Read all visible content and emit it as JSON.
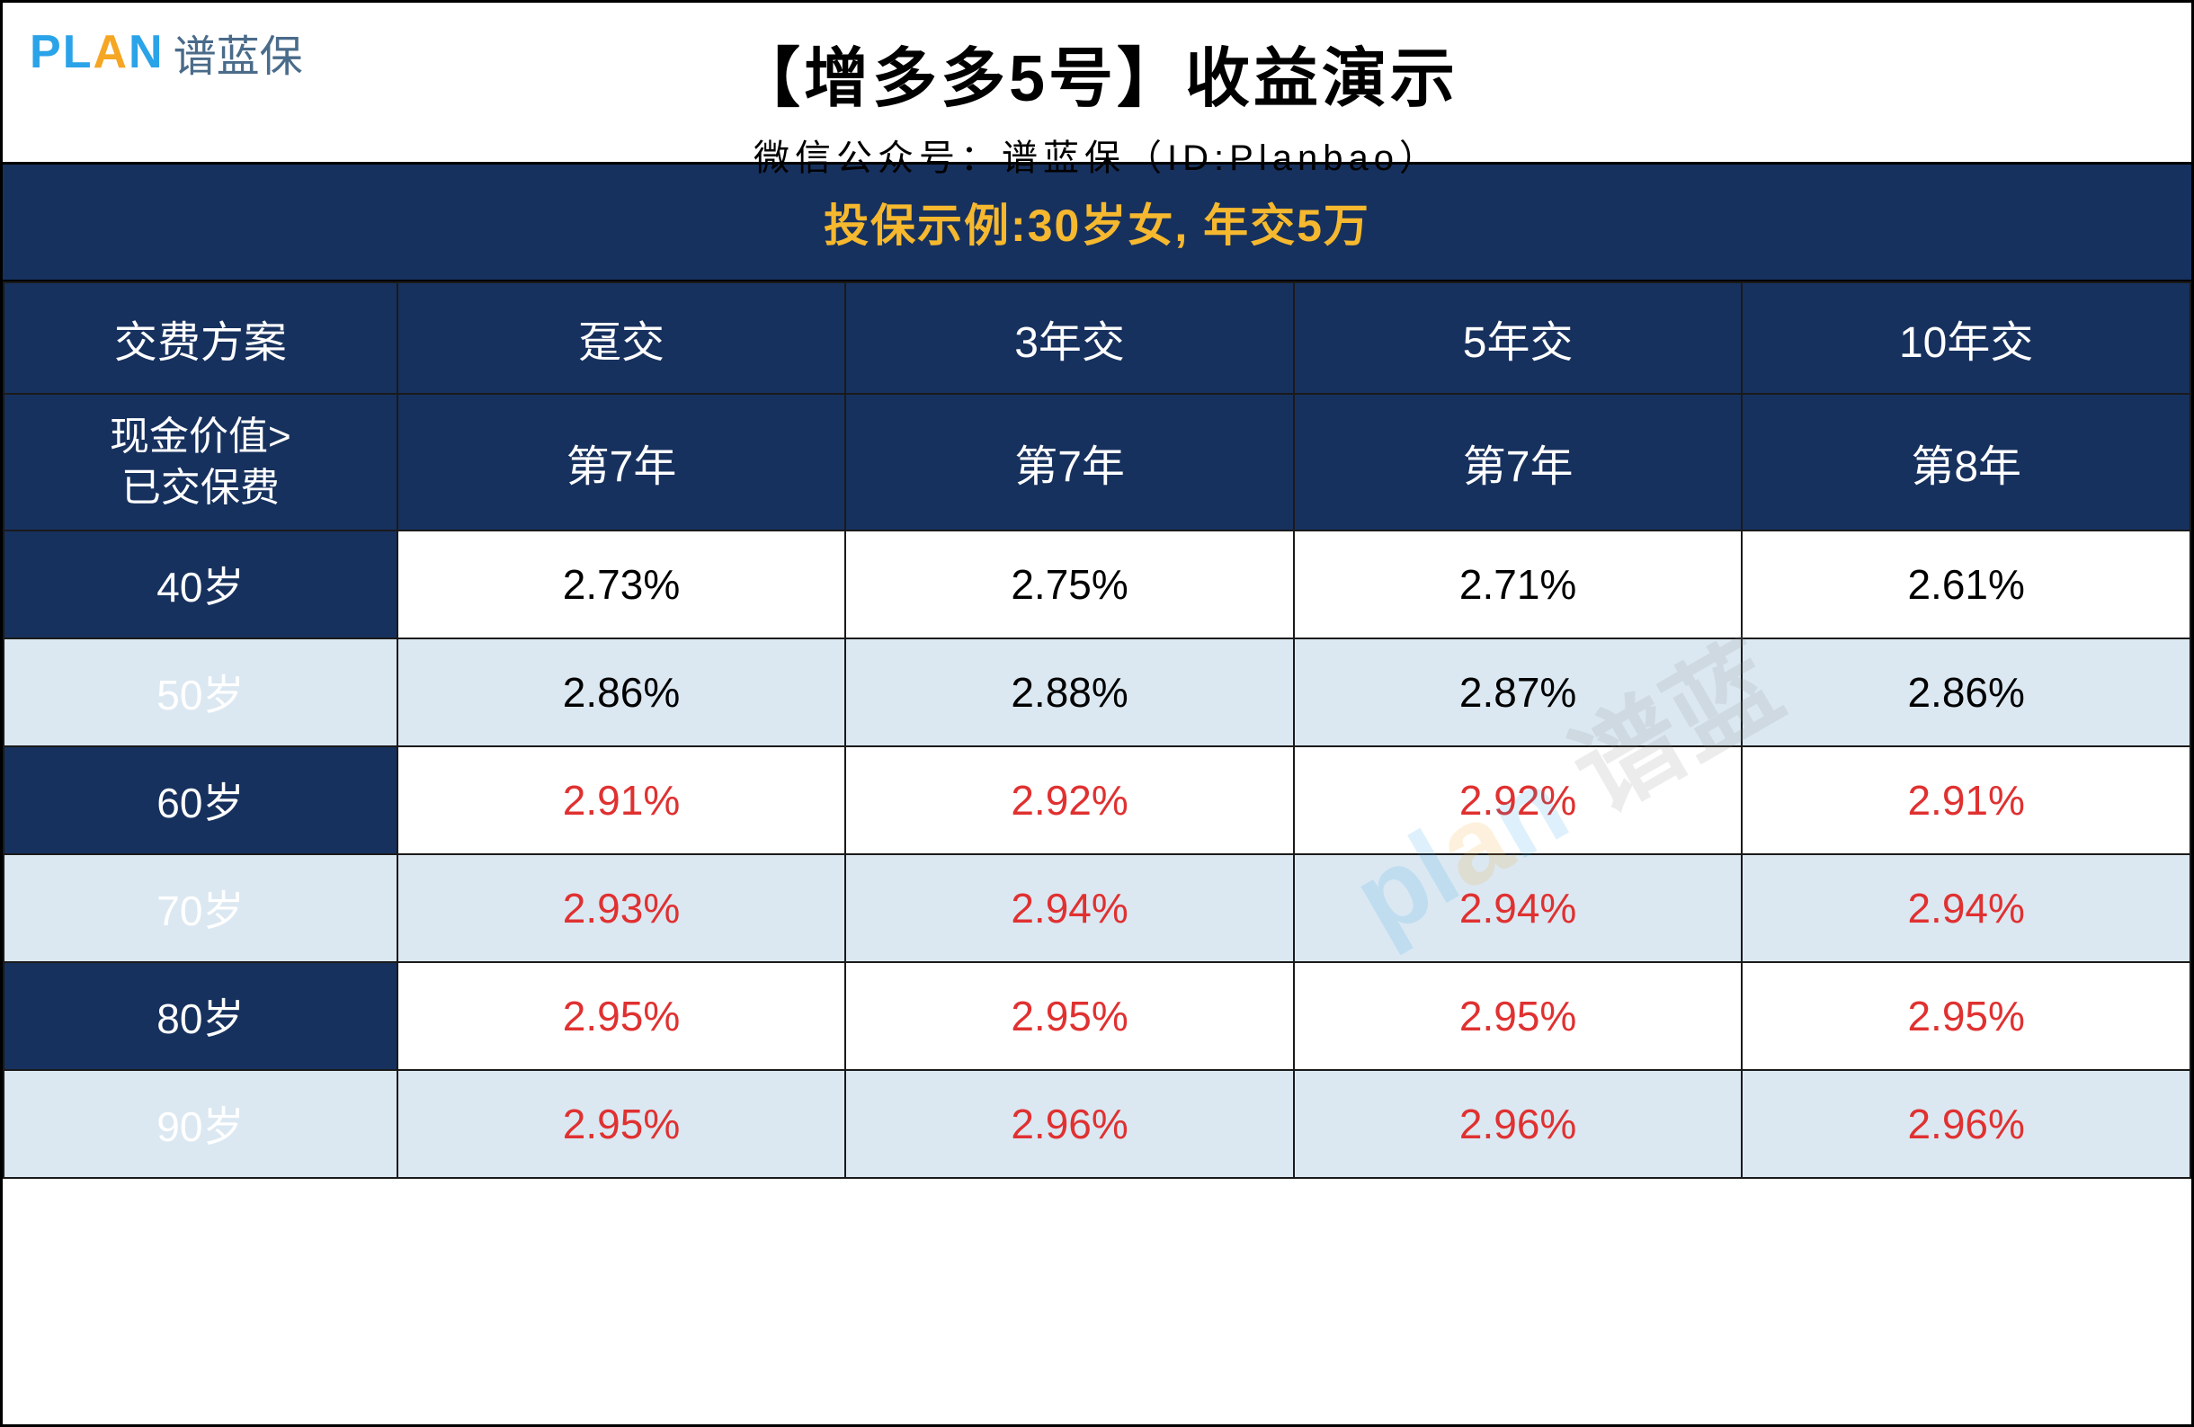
{
  "logo": {
    "brand": "PLAN",
    "cn": "谱蓝保"
  },
  "header": {
    "title": "【增多多5号】收益演示",
    "subtitle": "微信公众号：谱蓝保（ID:Planbao）"
  },
  "banner": "投保示例:30岁女, 年交5万",
  "table": {
    "columns": [
      "交费方案",
      "趸交",
      "3年交",
      "5年交",
      "10年交"
    ],
    "row2_label": "现金价值>\n已交保费",
    "row2_values": [
      "第7年",
      "第7年",
      "第7年",
      "第8年"
    ],
    "rows": [
      {
        "age": "40岁",
        "values": [
          "2.73%",
          "2.75%",
          "2.71%",
          "2.61%"
        ],
        "red": false,
        "alt": false
      },
      {
        "age": "50岁",
        "values": [
          "2.86%",
          "2.88%",
          "2.87%",
          "2.86%"
        ],
        "red": false,
        "alt": true
      },
      {
        "age": "60岁",
        "values": [
          "2.91%",
          "2.92%",
          "2.92%",
          "2.91%"
        ],
        "red": true,
        "alt": false
      },
      {
        "age": "70岁",
        "values": [
          "2.93%",
          "2.94%",
          "2.94%",
          "2.94%"
        ],
        "red": true,
        "alt": true
      },
      {
        "age": "80岁",
        "values": [
          "2.95%",
          "2.95%",
          "2.95%",
          "2.95%"
        ],
        "red": true,
        "alt": false
      },
      {
        "age": "90岁",
        "values": [
          "2.95%",
          "2.96%",
          "2.96%",
          "2.96%"
        ],
        "red": true,
        "alt": true
      }
    ]
  },
  "watermark": "plan 谱蓝",
  "colors": {
    "header_bg": "#17315e",
    "banner_text": "#f5b82e",
    "alt_row_bg": "#dbe8f2",
    "red_text": "#e03131",
    "border": "#000000"
  }
}
